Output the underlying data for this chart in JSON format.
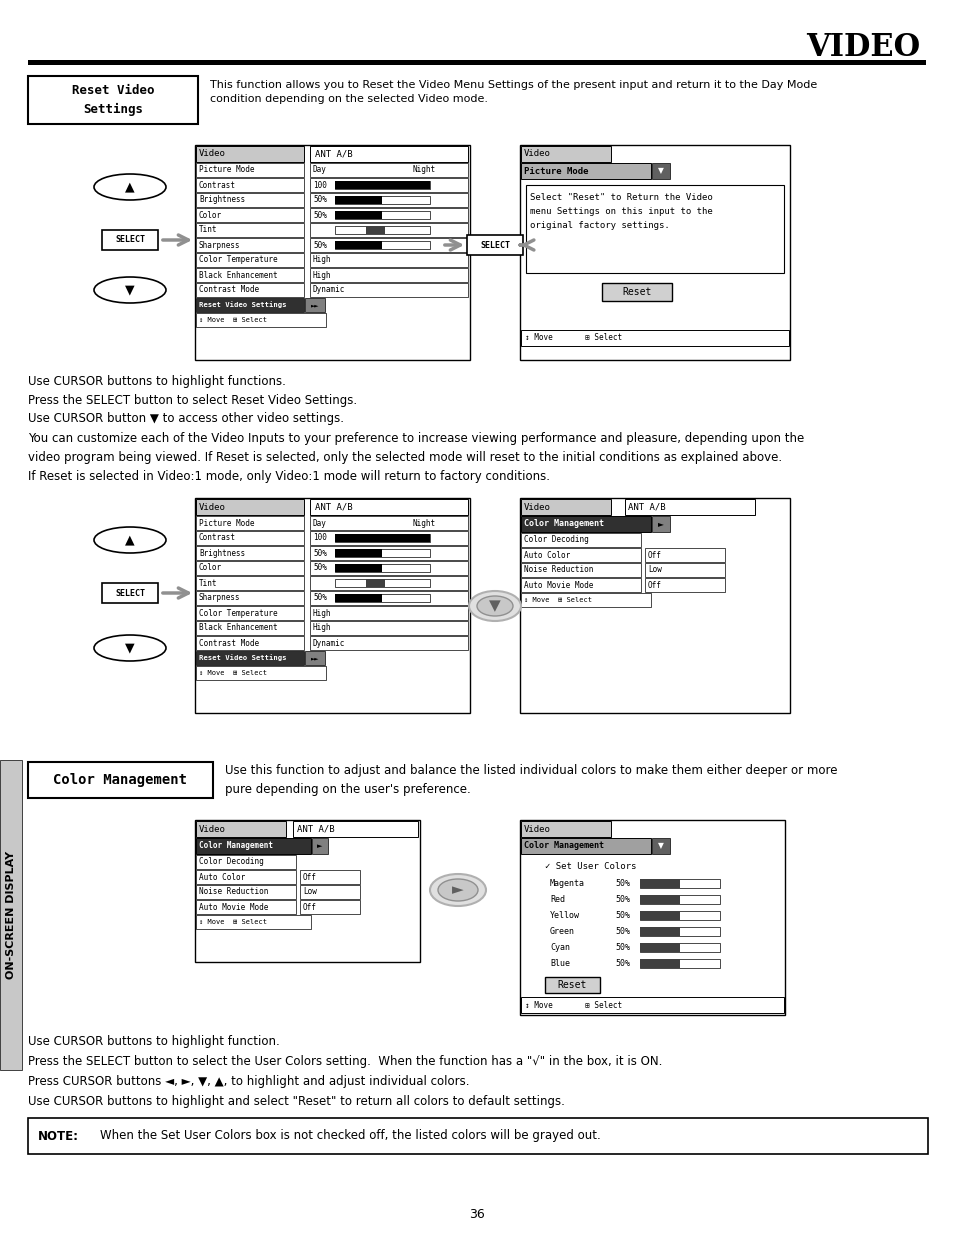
{
  "title": "VIDEO",
  "page_number": "36",
  "bg_color": "#ffffff",
  "section1_label": "Reset Video\nSettings",
  "section1_desc": "This function allows you to Reset the Video Menu Settings of the present input and return it to the Day Mode\ncondition depending on the selected Video mode.",
  "text1": "Use CURSOR buttons to highlight functions.\nPress the SELECT button to select Reset Video Settings.",
  "text2": "Use CURSOR button ▼ to access other video settings.",
  "text3": "You can customize each of the Video Inputs to your preference to increase viewing performance and pleasure, depending upon the\nvideo program being viewed. If Reset is selected, only the selected mode will reset to the initial conditions as explained above.",
  "text4": "If Reset is selected in Video:1 mode, only Video:1 mode will return to factory conditions.",
  "section2_label": "Color Management",
  "section2_desc": "Use this function to adjust and balance the listed individual colors to make them either deeper or more\npure depending on the user's preference.",
  "text5a": "Use CURSOR buttons to highlight function.",
  "text5b": "Press the SELECT button to select the User Colors setting.  When the function has a \"√\" in the box, it is ON.",
  "text5c": "Press CURSOR buttons ◄, ►, ▼, ▲, to highlight and adjust individual colors.",
  "text5d": "Use CURSOR buttons to highlight and select \"Reset\" to return all colors to default settings.",
  "note_bold": "NOTE:",
  "note_text": "    When the Set User Colors box is not checked off, the listed colors will be grayed out.",
  "sidebar_label": "ON-SCREEN DISPLAY",
  "menu_items": [
    [
      "Picture Mode",
      "Day    Night",
      "day_night"
    ],
    [
      "Contrast",
      "100%",
      "bar_full"
    ],
    [
      "Brightness",
      "50%",
      "bar_half"
    ],
    [
      "Color",
      "50%",
      "bar_half"
    ],
    [
      "Tint",
      "",
      "bar_tint"
    ],
    [
      "Sharpness",
      "50%",
      "bar_half"
    ],
    [
      "Color Temperature",
      "High",
      "text"
    ],
    [
      "Black Enhancement",
      "High",
      "text"
    ],
    [
      "Contrast Mode",
      "Dynamic",
      "text"
    ]
  ],
  "cm_items": [
    [
      "Color Decoding",
      ""
    ],
    [
      "Auto Color",
      "Off"
    ],
    [
      "Noise Reduction",
      "Low"
    ],
    [
      "Auto Movie Mode",
      "Off"
    ]
  ],
  "color_items": [
    "Magenta",
    "Red",
    "Yellow",
    "Green",
    "Cyan",
    "Blue"
  ]
}
